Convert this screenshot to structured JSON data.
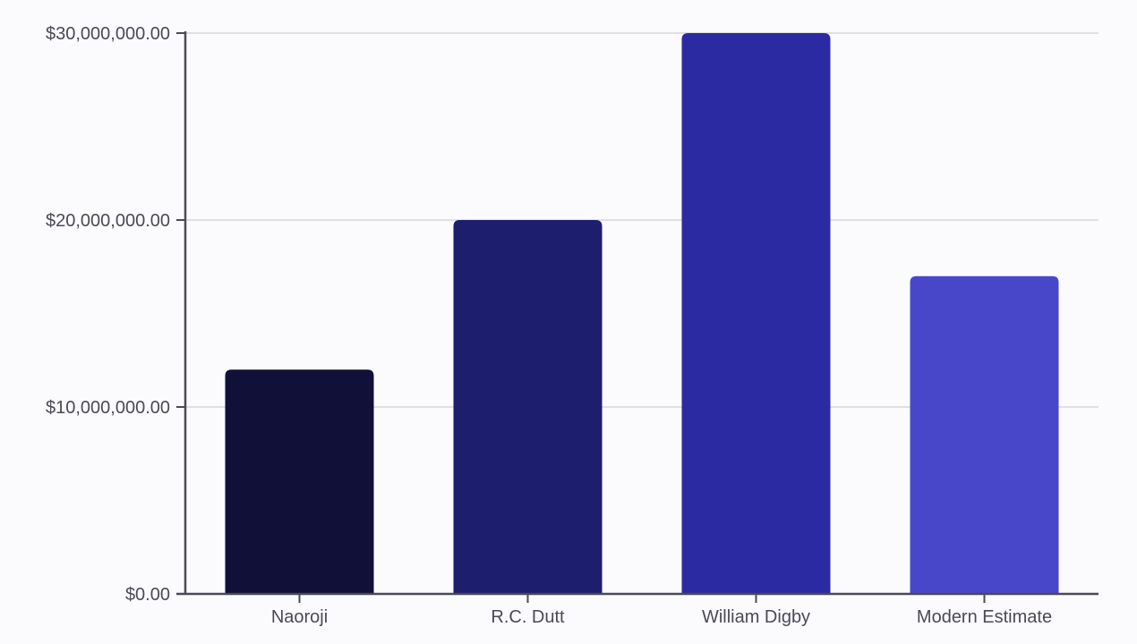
{
  "chart_data": {
    "type": "bar",
    "title": "",
    "xlabel": "",
    "ylabel": "",
    "categories": [
      "Naoroji",
      "R.C. Dutt",
      "William Digby",
      "Modern Estimate"
    ],
    "values": [
      12000000,
      20000000,
      30000000,
      17000000
    ],
    "colors": [
      "#101038",
      "#1e1e6e",
      "#2c2aa3",
      "#4947c9"
    ],
    "ylim": [
      0,
      30000000
    ],
    "yticks": [
      0,
      10000000,
      20000000,
      30000000
    ],
    "ytick_labels": [
      "$0.00",
      "$10,000,000.00",
      "$20,000,000.00",
      "$30,000,000.00"
    ],
    "grid": true,
    "legend": "none"
  }
}
